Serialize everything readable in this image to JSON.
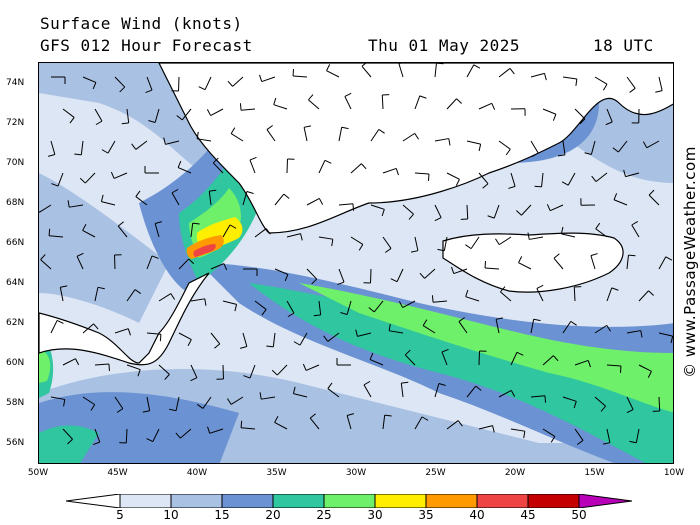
{
  "header": {
    "title": "Surface Wind (knots)",
    "subtitle": "GFS 012 Hour Forecast",
    "date": "Thu 01 May 2025",
    "time": "18 UTC"
  },
  "credit": "© www.PassageWeather.com",
  "lat_labels": [
    "74N",
    "72N",
    "70N",
    "68N",
    "66N",
    "64N",
    "62N",
    "60N",
    "58N",
    "56N"
  ],
  "lon_labels": [
    "50W",
    "45W",
    "40W",
    "35W",
    "30W",
    "25W",
    "20W",
    "15W",
    "10W"
  ],
  "legend": {
    "labels": [
      "5",
      "10",
      "15",
      "20",
      "25",
      "30",
      "35",
      "40",
      "45",
      "50"
    ],
    "colors": [
      "#ffffff",
      "#dde6f4",
      "#a9c1e3",
      "#6b92d2",
      "#2fc6a0",
      "#6ef06a",
      "#ffee00",
      "#ff9a00",
      "#ee4444",
      "#c40000",
      "#b800b8"
    ]
  },
  "colors": {
    "land": "#ffffff",
    "coast": "#000000",
    "barb": "#000000"
  }
}
